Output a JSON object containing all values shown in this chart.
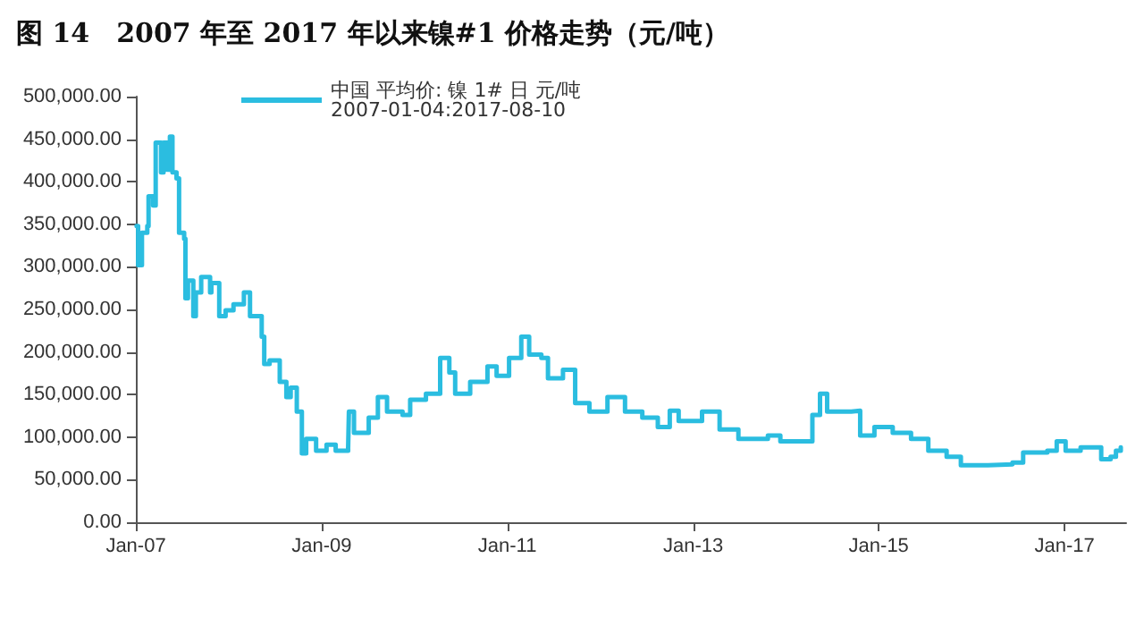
{
  "chart_data": {
    "type": "step",
    "title": "图 14　2007 年至 2017 年以来镍#1 价格走势（元/吨）",
    "x": [
      "2007-01-04",
      "2007-01-10",
      "2007-01-25",
      "2007-02-15",
      "2007-02-20",
      "2007-03-10",
      "2007-03-20",
      "2007-04-10",
      "2007-04-20",
      "2007-05-05",
      "2007-05-15",
      "2007-05-25",
      "2007-06-10",
      "2007-06-20",
      "2007-07-10",
      "2007-07-15",
      "2007-07-25",
      "2007-08-15",
      "2007-08-25",
      "2007-09-15",
      "2007-10-20",
      "2007-10-25",
      "2007-11-25",
      "2007-12-20",
      "2008-01-20",
      "2008-03-01",
      "2008-03-25",
      "2008-05-10",
      "2008-05-20",
      "2008-06-10",
      "2008-07-20",
      "2008-08-15",
      "2008-09-01",
      "2008-09-25",
      "2008-10-15",
      "2008-11-01",
      "2008-12-10",
      "2009-01-20",
      "2009-02-25",
      "2009-04-15",
      "2009-04-18",
      "2009-05-08",
      "2009-07-05",
      "2009-08-10",
      "2009-09-15",
      "2009-11-15",
      "2009-12-15",
      "2010-02-15",
      "2010-04-12",
      "2010-05-18",
      "2010-06-10",
      "2010-08-08",
      "2010-10-15",
      "2010-11-20",
      "2011-01-08",
      "2011-02-25",
      "2011-03-28",
      "2011-05-15",
      "2011-06-10",
      "2011-08-08",
      "2011-09-25",
      "2011-11-20",
      "2012-01-30",
      "2012-04-08",
      "2012-06-15",
      "2012-08-15",
      "2012-10-01",
      "2012-11-05",
      "2013-02-05",
      "2013-04-15",
      "2013-06-28",
      "2013-10-22",
      "2013-12-10",
      "2014-03-20",
      "2014-04-15",
      "2014-05-15",
      "2014-06-12",
      "2014-09-15",
      "2014-10-20",
      "2014-12-15",
      "2015-02-25",
      "2015-05-08",
      "2015-07-15",
      "2015-09-25",
      "2015-11-20",
      "2016-03-05",
      "2016-06-10",
      "2016-07-22",
      "2016-10-25",
      "2016-12-01",
      "2017-01-05",
      "2017-03-05",
      "2017-05-25",
      "2017-07-01",
      "2017-07-22",
      "2017-08-10"
    ],
    "series": [
      {
        "name": "中国 平均价: 镍 1# 日 元/吨 2007-01-04:2017-08-10",
        "color": "#2bbde0",
        "values": [
          348000,
          302000,
          340000,
          348000,
          383000,
          372000,
          446000,
          411000,
          446000,
          414000,
          453000,
          411000,
          404000,
          340000,
          333000,
          263000,
          284000,
          242000,
          270000,
          288000,
          270000,
          281000,
          242000,
          249000,
          256000,
          270000,
          242000,
          218000,
          186000,
          190000,
          165000,
          147000,
          158000,
          130000,
          81000,
          98000,
          84000,
          91000,
          84000,
          88000,
          130000,
          105000,
          123000,
          147000,
          130000,
          126000,
          144000,
          151000,
          193000,
          176000,
          151000,
          165000,
          183000,
          172000,
          193000,
          218000,
          197000,
          193000,
          169000,
          179000,
          140000,
          130000,
          147000,
          130000,
          123000,
          112000,
          131000,
          119000,
          130000,
          109000,
          98000,
          102000,
          95000,
          95000,
          126000,
          151000,
          130000,
          131000,
          102000,
          112000,
          105000,
          98000,
          84000,
          77000,
          67000,
          68000,
          70000,
          82000,
          84000,
          95000,
          84000,
          88000,
          74000,
          77000,
          84000,
          88000
        ]
      }
    ],
    "xlim": [
      "2007-01-01",
      "2017-08-31"
    ],
    "xticks": [
      {
        "value": "2007-01-01",
        "label": "Jan-07"
      },
      {
        "value": "2009-01-01",
        "label": "Jan-09"
      },
      {
        "value": "2011-01-01",
        "label": "Jan-11"
      },
      {
        "value": "2013-01-01",
        "label": "Jan-13"
      },
      {
        "value": "2015-01-01",
        "label": "Jan-15"
      },
      {
        "value": "2017-01-01",
        "label": "Jan-17"
      }
    ],
    "ylim": [
      0,
      500000
    ],
    "yticks": [
      {
        "value": 0,
        "label": "0.00"
      },
      {
        "value": 50000,
        "label": "50,000.00"
      },
      {
        "value": 100000,
        "label": "100,000.00"
      },
      {
        "value": 150000,
        "label": "150,000.00"
      },
      {
        "value": 200000,
        "label": "200,000.00"
      },
      {
        "value": 250000,
        "label": "250,000.00"
      },
      {
        "value": 300000,
        "label": "300,000.00"
      },
      {
        "value": 350000,
        "label": "350,000.00"
      },
      {
        "value": 400000,
        "label": "400,000.00"
      },
      {
        "value": 450000,
        "label": "450,000.00"
      },
      {
        "value": 500000,
        "label": "500,000.00"
      }
    ],
    "grid": false,
    "legend": "top",
    "marker": "none",
    "line_style": "solid"
  }
}
